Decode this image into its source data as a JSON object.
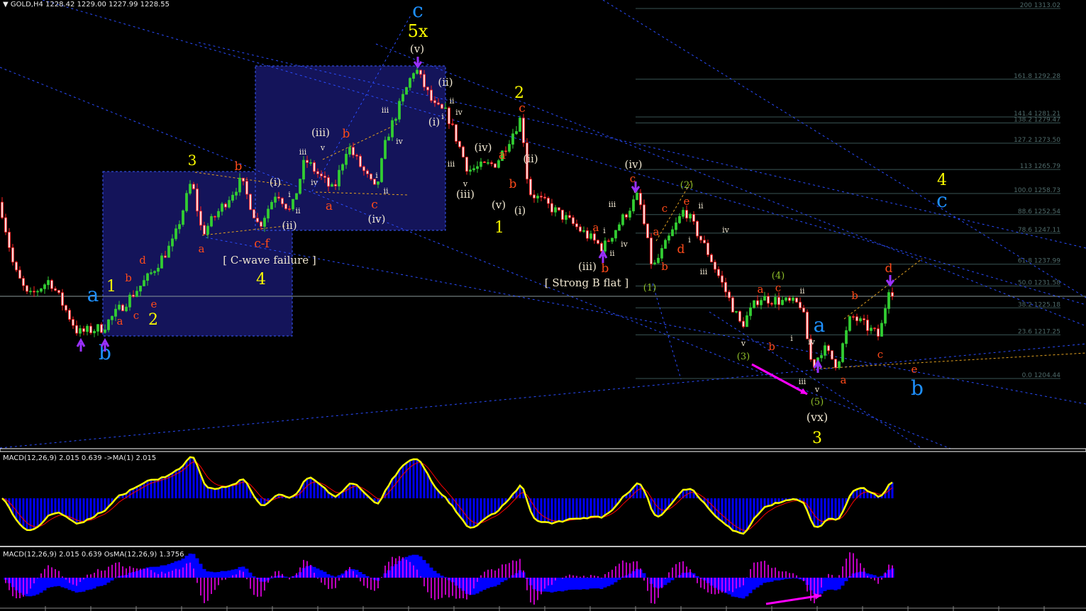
{
  "header": {
    "symbol": "GOLD,H4",
    "ohlc": "1228.42 1229.00 1227.99 1228.55",
    "macd_panel": "MACD(12,26,9) 2.015 0.639  ->MA(1) 2.015",
    "osma_panel": "MACD(12,26,9) 2.015 0.639  OsMA(12,26,9) 1.3756"
  },
  "colors": {
    "background": "#000000",
    "bull_candle": "#32cd32",
    "bear_candle": "#ff2020",
    "box_fill": "#14145a",
    "trendline": "#2a4cff",
    "fib_line": "#3a5555",
    "wave_major_blue": "#1e90ff",
    "wave_yellow": "#ffff00",
    "wave_orange": "#ff4a1a",
    "wave_white": "#efe6d0",
    "wave_green": "#8fbf2a",
    "macd_hist": "#0000ff",
    "macd_line": "#ffff00",
    "signal_line": "#ff0000",
    "osma": "#ff00ff",
    "arrow": "#ff00ff"
  },
  "annotations": {
    "c_wave_failure": "[ C-wave failure ]",
    "strong_b_flat": "[ Strong B flat ]"
  },
  "wave_labels": [
    {
      "text": "c",
      "color": "#1e90ff"
    },
    {
      "text": "a",
      "color": "#1e90ff"
    },
    {
      "text": "b",
      "color": "#1e90ff"
    },
    {
      "text": "a",
      "color": "#1e90ff"
    },
    {
      "text": "b",
      "color": "#1e90ff"
    },
    {
      "text": "c",
      "color": "#1e90ff"
    },
    {
      "text": "5x",
      "color": "#ffff00"
    },
    {
      "text": "1",
      "color": "#ffff00"
    },
    {
      "text": "2",
      "color": "#ffff00"
    },
    {
      "text": "3",
      "color": "#ffff00"
    },
    {
      "text": "4",
      "color": "#ffff00"
    },
    {
      "text": "2",
      "color": "#ffff00"
    },
    {
      "text": "1",
      "color": "#ffff00"
    },
    {
      "text": "4",
      "color": "#ffff00"
    },
    {
      "text": "3",
      "color": "#ffff00"
    },
    {
      "text": "a",
      "color": "#ff4a1a"
    },
    {
      "text": "b",
      "color": "#ff4a1a"
    },
    {
      "text": "c",
      "color": "#ff4a1a"
    },
    {
      "text": "d",
      "color": "#ff4a1a"
    },
    {
      "text": "e",
      "color": "#ff4a1a"
    },
    {
      "text": "b",
      "color": "#ff4a1a"
    },
    {
      "text": "a",
      "color": "#ff4a1a"
    },
    {
      "text": "c-f",
      "color": "#ff4a1a"
    },
    {
      "text": "b",
      "color": "#ff4a1a"
    },
    {
      "text": "a",
      "color": "#ff4a1a"
    },
    {
      "text": "c",
      "color": "#ff4a1a"
    },
    {
      "text": "c",
      "color": "#ff4a1a"
    },
    {
      "text": "a",
      "color": "#ff4a1a"
    },
    {
      "text": "b",
      "color": "#ff4a1a"
    },
    {
      "text": "a",
      "color": "#ff4a1a"
    },
    {
      "text": "b",
      "color": "#ff4a1a"
    },
    {
      "text": "c",
      "color": "#ff4a1a"
    },
    {
      "text": "a",
      "color": "#ff4a1a"
    },
    {
      "text": "b",
      "color": "#ff4a1a"
    },
    {
      "text": "c",
      "color": "#ff4a1a"
    },
    {
      "text": "d",
      "color": "#ff4a1a"
    },
    {
      "text": "e",
      "color": "#ff4a1a"
    },
    {
      "text": "a",
      "color": "#ff4a1a"
    },
    {
      "text": "c",
      "color": "#ff4a1a"
    },
    {
      "text": "b",
      "color": "#ff4a1a"
    },
    {
      "text": "a",
      "color": "#ff4a1a"
    },
    {
      "text": "b",
      "color": "#ff4a1a"
    },
    {
      "text": "c",
      "color": "#ff4a1a"
    },
    {
      "text": "d",
      "color": "#ff4a1a"
    },
    {
      "text": "e",
      "color": "#ff4a1a"
    },
    {
      "text": "(v)",
      "color": "#efe6d0"
    },
    {
      "text": "(i)",
      "color": "#efe6d0"
    },
    {
      "text": "(ii)",
      "color": "#efe6d0"
    },
    {
      "text": "i",
      "color": "#efe6d0"
    },
    {
      "text": "ii",
      "color": "#efe6d0"
    },
    {
      "text": "(iii)",
      "color": "#efe6d0"
    },
    {
      "text": "v",
      "color": "#efe6d0"
    },
    {
      "text": "iii",
      "color": "#efe6d0"
    },
    {
      "text": "iv",
      "color": "#efe6d0"
    },
    {
      "text": "(iv)",
      "color": "#efe6d0"
    },
    {
      "text": "ii",
      "color": "#efe6d0"
    },
    {
      "text": "i",
      "color": "#efe6d0"
    },
    {
      "text": "iii",
      "color": "#efe6d0"
    },
    {
      "text": "iv",
      "color": "#efe6d0"
    },
    {
      "text": "(ii)",
      "color": "#efe6d0"
    },
    {
      "text": "(i)",
      "color": "#efe6d0"
    },
    {
      "text": "ii",
      "color": "#efe6d0"
    },
    {
      "text": "iv",
      "color": "#efe6d0"
    },
    {
      "text": "i",
      "color": "#efe6d0"
    },
    {
      "text": "iii",
      "color": "#efe6d0"
    },
    {
      "text": "(iii)",
      "color": "#efe6d0"
    },
    {
      "text": "v",
      "color": "#efe6d0"
    },
    {
      "text": "(iv)",
      "color": "#efe6d0"
    },
    {
      "text": "(ii)",
      "color": "#efe6d0"
    },
    {
      "text": "(i)",
      "color": "#efe6d0"
    },
    {
      "text": "(v)",
      "color": "#efe6d0"
    },
    {
      "text": "(iii)",
      "color": "#efe6d0"
    },
    {
      "text": "iii",
      "color": "#efe6d0"
    },
    {
      "text": "i",
      "color": "#efe6d0"
    },
    {
      "text": "ii",
      "color": "#efe6d0"
    },
    {
      "text": "iv",
      "color": "#efe6d0"
    },
    {
      "text": "(iv)",
      "color": "#efe6d0"
    },
    {
      "text": "v",
      "color": "#efe6d0"
    },
    {
      "text": "ii",
      "color": "#efe6d0"
    },
    {
      "text": "i",
      "color": "#efe6d0"
    },
    {
      "text": "iv",
      "color": "#efe6d0"
    },
    {
      "text": "iii",
      "color": "#efe6d0"
    },
    {
      "text": "v",
      "color": "#efe6d0"
    },
    {
      "text": "i",
      "color": "#efe6d0"
    },
    {
      "text": "ii",
      "color": "#efe6d0"
    },
    {
      "text": "iv",
      "color": "#efe6d0"
    },
    {
      "text": "iii",
      "color": "#efe6d0"
    },
    {
      "text": "(vx)",
      "color": "#efe6d0"
    },
    {
      "text": "v",
      "color": "#efe6d0"
    },
    {
      "text": "(1)",
      "color": "#8fbf2a"
    },
    {
      "text": "(2)",
      "color": "#8fbf2a"
    },
    {
      "text": "(3)",
      "color": "#8fbf2a"
    },
    {
      "text": "(4)",
      "color": "#8fbf2a"
    },
    {
      "text": "(5)",
      "color": "#8fbf2a"
    }
  ],
  "chart_data": {
    "type": "candlestick",
    "title": "GOLD,H4",
    "last_bar": {
      "open": 1228.42,
      "high": 1229.0,
      "low": 1227.99,
      "close": 1228.55
    },
    "current_price": 1228.55,
    "grid": false,
    "swing_prices": [
      1256.2,
      1236.5,
      1228.2,
      1233.4,
      1217.8,
      1219.4,
      1234.4,
      1244.8,
      1262.5,
      1246.9,
      1262.5,
      1249.0,
      1259.4,
      1253.1,
      1268.7,
      1259.4,
      1272.9,
      1259.4,
      1275.0,
      1295.8,
      1284.3,
      1282.2,
      1265.6,
      1267.7,
      1281.2,
      1259.4,
      1251.0,
      1242.7,
      1258.3,
      1236.5,
      1254.2,
      1240.6,
      1219.8,
      1228.2,
      1226.1,
      1207.4,
      1213.6,
      1208.4,
      1222.9,
      1216.7,
      1233.4,
      1228.55
    ],
    "fibonacci_levels": [
      {
        "label": "200 1313.02",
        "ratio": 200,
        "price": 1313.02
      },
      {
        "label": "161.8 1292.28",
        "ratio": 161.8,
        "price": 1292.28
      },
      {
        "label": "141.4 1281.21",
        "ratio": 141.4,
        "price": 1281.21
      },
      {
        "label": "138.2 1279.47",
        "ratio": 138.2,
        "price": 1279.47
      },
      {
        "label": "127.2 1273.50",
        "ratio": 127.2,
        "price": 1273.5
      },
      {
        "label": "113 1265.79",
        "ratio": 113,
        "price": 1265.79
      },
      {
        "label": "100.0 1258.73",
        "ratio": 100.0,
        "price": 1258.73
      },
      {
        "label": "88.6 1252.54",
        "ratio": 88.6,
        "price": 1252.54
      },
      {
        "label": "78.6 1247.11",
        "ratio": 78.6,
        "price": 1247.11
      },
      {
        "label": "61.8 1237.99",
        "ratio": 61.8,
        "price": 1237.99
      },
      {
        "label": "50.0 1231.58",
        "ratio": 50.0,
        "price": 1231.58
      },
      {
        "label": "38.2 1225.18",
        "ratio": 38.2,
        "price": 1225.18
      },
      {
        "label": "23.6 1217.25",
        "ratio": 23.6,
        "price": 1217.25
      },
      {
        "label": "0.0 1204.44",
        "ratio": 0.0,
        "price": 1204.44
      }
    ],
    "indicators": [
      {
        "name": "MACD(12,26,9)",
        "main": 2.015,
        "signal": 0.639,
        "ma1": 2.015
      },
      {
        "name": "OsMA(12,26,9)",
        "value": 1.3756
      }
    ]
  }
}
